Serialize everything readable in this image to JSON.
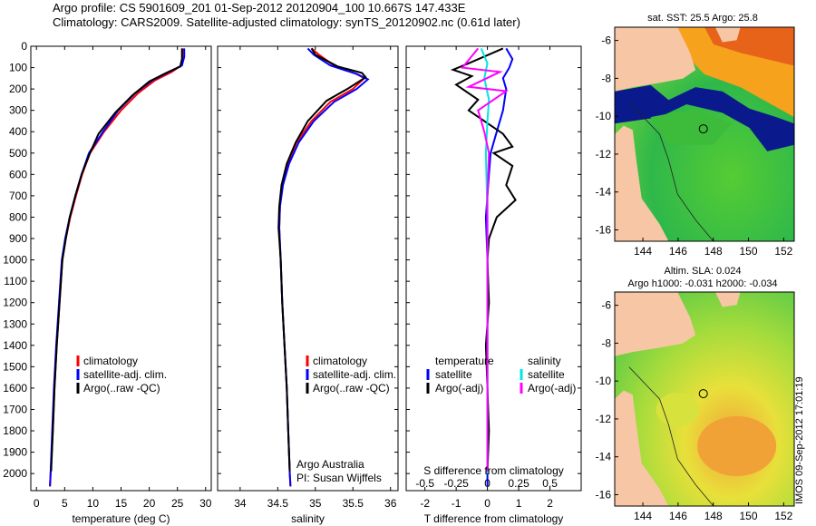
{
  "header": {
    "line1": "Argo profile: CS 5901609_201 01-Sep-2012 20120904_100 10.667S 147.433E",
    "line2": "Climatology: CARS2009. Satellite-adjusted climatology: synTS_20120902.nc (0.61d later)"
  },
  "side_label": "IMOS 09-Sep-2012 17:01:19",
  "colors": {
    "climatology": "#ff0000",
    "satellite": "#0000ff",
    "argo": "#000000",
    "satellite_salinity": "#00e5e5",
    "argo_salinity": "#ff00ff",
    "land": "#f7c7a5",
    "sst_warm": "#ff9900",
    "sst_green": "#22bb22"
  },
  "chart_data": [
    {
      "id": "temperature",
      "type": "line",
      "xlabel": "temperature (deg C)",
      "xlim": [
        -1,
        31
      ],
      "xticks": [
        0,
        5,
        10,
        15,
        20,
        25,
        30
      ],
      "ylim": [
        2080,
        0
      ],
      "yticks": [
        0,
        100,
        200,
        300,
        400,
        500,
        600,
        700,
        800,
        900,
        1000,
        1100,
        1200,
        1300,
        1400,
        1500,
        1600,
        1700,
        1800,
        1900,
        2000
      ],
      "legend": [
        "climatology",
        "satellite-adj. clim.",
        "Argo(..raw -QC)"
      ],
      "series": [
        {
          "name": "climatology",
          "color": "#ff0000",
          "points": [
            [
              25.9,
              10
            ],
            [
              25.9,
              50
            ],
            [
              25.7,
              90
            ],
            [
              24,
              120
            ],
            [
              21,
              160
            ],
            [
              18,
              220
            ],
            [
              15,
              300
            ],
            [
              12,
              400
            ],
            [
              9.5,
              500
            ],
            [
              8.1,
              600
            ],
            [
              7.0,
              700
            ],
            [
              6.0,
              800
            ],
            [
              5.2,
              900
            ],
            [
              4.6,
              1000
            ],
            [
              4.1,
              1200
            ],
            [
              3.6,
              1400
            ],
            [
              3.2,
              1600
            ],
            [
              2.9,
              1800
            ],
            [
              2.5,
              2000
            ],
            [
              2.4,
              2060
            ]
          ]
        },
        {
          "name": "satellite-adj. clim.",
          "color": "#0000ff",
          "points": [
            [
              26.2,
              10
            ],
            [
              26.2,
              50
            ],
            [
              25.8,
              90
            ],
            [
              23.5,
              120
            ],
            [
              20.5,
              160
            ],
            [
              17.5,
              220
            ],
            [
              14.5,
              300
            ],
            [
              11.8,
              400
            ],
            [
              9.3,
              500
            ],
            [
              8.0,
              600
            ],
            [
              6.9,
              700
            ],
            [
              5.9,
              800
            ],
            [
              5.1,
              900
            ],
            [
              4.5,
              1000
            ],
            [
              4.0,
              1200
            ],
            [
              3.5,
              1400
            ],
            [
              3.1,
              1600
            ],
            [
              2.8,
              1800
            ],
            [
              2.5,
              2000
            ],
            [
              2.4,
              2060
            ]
          ]
        },
        {
          "name": "Argo(..raw -QC)",
          "color": "#000000",
          "points": [
            [
              25.8,
              10
            ],
            [
              25.8,
              60
            ],
            [
              25.5,
              95
            ],
            [
              23,
              125
            ],
            [
              20,
              165
            ],
            [
              17,
              230
            ],
            [
              14,
              310
            ],
            [
              11,
              410
            ],
            [
              9.5,
              500
            ],
            [
              8.0,
              600
            ],
            [
              6.9,
              700
            ],
            [
              5.9,
              800
            ],
            [
              5.2,
              900
            ],
            [
              4.6,
              1000
            ],
            [
              4.1,
              1200
            ],
            [
              3.6,
              1400
            ],
            [
              3.2,
              1600
            ],
            [
              2.9,
              1800
            ],
            [
              2.6,
              1990
            ]
          ]
        }
      ]
    },
    {
      "id": "salinity",
      "type": "line",
      "xlabel": "salinity",
      "xlim": [
        33.7,
        36.1
      ],
      "xticks": [
        34,
        34.5,
        35,
        35.5,
        36
      ],
      "ylim": [
        2080,
        0
      ],
      "legend": [
        "climatology",
        "satellite-adj. clim.",
        "Argo(..raw -QC)"
      ],
      "annotations": [
        "Argo Australia",
        "PI: Susan Wijffels"
      ],
      "series": [
        {
          "name": "climatology",
          "color": "#ff0000",
          "points": [
            [
              34.95,
              10
            ],
            [
              35.05,
              40
            ],
            [
              35.25,
              90
            ],
            [
              35.55,
              130
            ],
            [
              35.65,
              150
            ],
            [
              35.5,
              200
            ],
            [
              35.2,
              260
            ],
            [
              34.95,
              350
            ],
            [
              34.75,
              450
            ],
            [
              34.63,
              550
            ],
            [
              34.56,
              650
            ],
            [
              34.53,
              750
            ],
            [
              34.52,
              850
            ],
            [
              34.54,
              1000
            ],
            [
              34.56,
              1200
            ],
            [
              34.59,
              1400
            ],
            [
              34.62,
              1600
            ],
            [
              34.64,
              1800
            ],
            [
              34.66,
              2000
            ],
            [
              34.67,
              2060
            ]
          ]
        },
        {
          "name": "satellite-adj. clim.",
          "color": "#0000ff",
          "points": [
            [
              34.9,
              10
            ],
            [
              34.98,
              40
            ],
            [
              35.2,
              90
            ],
            [
              35.55,
              130
            ],
            [
              35.7,
              155
            ],
            [
              35.55,
              200
            ],
            [
              35.25,
              260
            ],
            [
              34.98,
              350
            ],
            [
              34.78,
              450
            ],
            [
              34.65,
              550
            ],
            [
              34.57,
              650
            ],
            [
              34.53,
              750
            ],
            [
              34.52,
              850
            ],
            [
              34.54,
              1000
            ],
            [
              34.56,
              1200
            ],
            [
              34.59,
              1400
            ],
            [
              34.62,
              1600
            ],
            [
              34.64,
              1800
            ],
            [
              34.66,
              2000
            ],
            [
              34.67,
              2060
            ]
          ]
        },
        {
          "name": "Argo(..raw -QC)",
          "color": "#000000",
          "points": [
            [
              34.95,
              10
            ],
            [
              35.0,
              40
            ],
            [
              35.3,
              95
            ],
            [
              35.62,
              125
            ],
            [
              35.67,
              145
            ],
            [
              35.45,
              195
            ],
            [
              35.15,
              255
            ],
            [
              34.9,
              350
            ],
            [
              34.74,
              450
            ],
            [
              34.62,
              550
            ],
            [
              34.55,
              650
            ],
            [
              34.52,
              750
            ],
            [
              34.51,
              850
            ],
            [
              34.54,
              1000
            ],
            [
              34.56,
              1200
            ],
            [
              34.59,
              1400
            ],
            [
              34.62,
              1600
            ],
            [
              34.64,
              1800
            ],
            [
              34.66,
              1990
            ]
          ]
        }
      ]
    },
    {
      "id": "difference",
      "type": "line",
      "xlabel": "T difference from climatology",
      "xlabel_top": "S difference from climatology",
      "xlim": [
        -2.6,
        3.0
      ],
      "xticks": [
        -2,
        -1,
        0,
        1,
        2
      ],
      "xticks_s": [
        "-0.5",
        "-0.25",
        "0",
        "0.25",
        "0.5"
      ],
      "xticks_s_pos": [
        -2,
        -1,
        0,
        1,
        2
      ],
      "ylim": [
        2080,
        0
      ],
      "legend_temperature_title": "temperature",
      "legend_salinity_title": "salinity",
      "legend_temperature": [
        "satellite",
        "Argo(-adj)"
      ],
      "legend_salinity": [
        "satellite",
        "Argo(-adj)"
      ],
      "series": [
        {
          "name": "T satellite",
          "color": "#0000ff",
          "points": [
            [
              0.6,
              10
            ],
            [
              0.8,
              60
            ],
            [
              0.7,
              100
            ],
            [
              0.5,
              150
            ],
            [
              0.6,
              200
            ],
            [
              0.5,
              300
            ],
            [
              0.3,
              400
            ],
            [
              0.1,
              500
            ],
            [
              0.05,
              600
            ],
            [
              0.0,
              700
            ],
            [
              -0.05,
              800
            ],
            [
              0.0,
              1000
            ],
            [
              0.0,
              1500
            ],
            [
              0.0,
              2000
            ],
            [
              0.0,
              2060
            ]
          ]
        },
        {
          "name": "T Argo(-adj)",
          "color": "#000000",
          "points": [
            [
              0.5,
              10
            ],
            [
              -0.6,
              80
            ],
            [
              -1.1,
              110
            ],
            [
              -0.5,
              140
            ],
            [
              -1.0,
              180
            ],
            [
              -0.3,
              250
            ],
            [
              -0.6,
              300
            ],
            [
              0.5,
              410
            ],
            [
              0.8,
              470
            ],
            [
              0.2,
              500
            ],
            [
              0.8,
              560
            ],
            [
              0.6,
              650
            ],
            [
              0.9,
              720
            ],
            [
              0.3,
              800
            ],
            [
              0.05,
              900
            ],
            [
              0.0,
              1000
            ],
            [
              0.05,
              1200
            ],
            [
              -0.05,
              1400
            ],
            [
              0.0,
              1600
            ],
            [
              0.05,
              1800
            ],
            [
              0.0,
              1990
            ]
          ]
        },
        {
          "name": "S satellite",
          "color": "#00e5e5",
          "points": [
            [
              -0.2,
              10
            ],
            [
              0.0,
              80
            ],
            [
              -0.1,
              150
            ],
            [
              0.05,
              250
            ],
            [
              0.0,
              350
            ],
            [
              -0.05,
              500
            ],
            [
              0.0,
              800
            ],
            [
              0.0,
              1000
            ],
            [
              0.0,
              1500
            ],
            [
              0.0,
              2000
            ]
          ]
        },
        {
          "name": "S Argo(-adj)",
          "color": "#ff00ff",
          "points": [
            [
              -0.3,
              10
            ],
            [
              -0.8,
              100
            ],
            [
              0.4,
              120
            ],
            [
              -0.6,
              190
            ],
            [
              0.6,
              210
            ],
            [
              -0.3,
              300
            ],
            [
              -0.1,
              400
            ],
            [
              0.05,
              500
            ],
            [
              0.0,
              700
            ],
            [
              0.0,
              1000
            ],
            [
              0.0,
              1500
            ],
            [
              0.0,
              1990
            ]
          ]
        }
      ]
    },
    {
      "id": "sst_map",
      "type": "heatmap",
      "title": "sat. SST: 25.5 Argo: 25.8",
      "xlim": [
        142.4,
        152.6
      ],
      "ylim": [
        -16.6,
        -5.3
      ],
      "xticks": [
        144,
        146,
        148,
        150,
        152
      ],
      "yticks": [
        -6,
        -8,
        -10,
        -12,
        -14,
        -16
      ],
      "marker": {
        "lon": 147.433,
        "lat": -10.667
      }
    },
    {
      "id": "sla_map",
      "type": "heatmap",
      "title_line1": "Altim. SLA: 0.024",
      "title_line2": "Argo h1000: -0.031 h2000: -0.034",
      "xlim": [
        142.4,
        152.6
      ],
      "ylim": [
        -16.6,
        -5.3
      ],
      "xticks": [
        144,
        146,
        148,
        150,
        152
      ],
      "yticks": [
        -6,
        -8,
        -10,
        -12,
        -14,
        -16
      ],
      "marker": {
        "lon": 147.433,
        "lat": -10.667
      }
    }
  ]
}
